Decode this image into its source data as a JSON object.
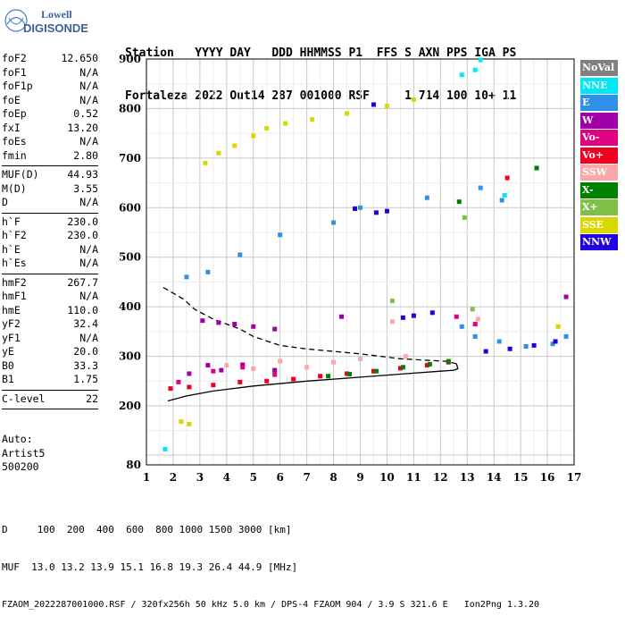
{
  "logo": {
    "line1": "Lowell",
    "line2": "DIGISONDE"
  },
  "header": {
    "labels": "Station   YYYY DAY   DDD HHMMSS P1  FFS S AXN PPS IGA PS",
    "values": "Fortaleza 2022 Out14 287 001000 RSF     1 714 100 10+ 11"
  },
  "params": [
    [
      [
        "foF2",
        "12.650"
      ],
      [
        "foF1",
        "N/A"
      ],
      [
        "foF1p",
        "N/A"
      ],
      [
        "foE",
        "N/A"
      ],
      [
        "foEp",
        "0.52"
      ],
      [
        "fxI",
        "13.20"
      ],
      [
        "foEs",
        "N/A"
      ],
      [
        "fmin",
        "2.80"
      ]
    ],
    [
      [
        "MUF(D)",
        "44.93"
      ],
      [
        "M(D)",
        "3.55"
      ],
      [
        "D",
        "N/A"
      ]
    ],
    [
      [
        "h`F",
        "230.0"
      ],
      [
        "h`F2",
        "230.0"
      ],
      [
        "h`E",
        "N/A"
      ],
      [
        "h`Es",
        "N/A"
      ]
    ],
    [
      [
        "hmF2",
        "267.7"
      ],
      [
        "hmF1",
        "N/A"
      ],
      [
        "hmE",
        "110.0"
      ],
      [
        "yF2",
        "32.4"
      ],
      [
        "yF1",
        "N/A"
      ],
      [
        "yE",
        "20.0"
      ],
      [
        "B0",
        "33.3"
      ],
      [
        "B1",
        "1.75"
      ]
    ],
    [
      [
        "C-level",
        "22"
      ]
    ]
  ],
  "auto": {
    "line1": "Auto:",
    "line2": "Artist5",
    "line3": "500200"
  },
  "footer": {
    "line1": "D     100  200  400  600  800 1000 1500 3000 [km]",
    "line2": "MUF  13.0 13.2 13.9 15.1 16.8 19.3 26.4 44.9 [MHz]",
    "line3": "FZAOM_2022287001000.RSF / 320fx256h 50 kHz 5.0 km / DPS-4 FZAOM 904 / 3.9 S 321.6 E   Ion2Png 1.3.20"
  },
  "legend": [
    {
      "label": "NoVal",
      "color": "#808080"
    },
    {
      "label": "NNE",
      "color": "#00e8f8"
    },
    {
      "label": "E",
      "color": "#3090e8"
    },
    {
      "label": "W",
      "color": "#a000a8"
    },
    {
      "label": "Vo-",
      "color": "#e00080"
    },
    {
      "label": "Vo+",
      "color": "#f00020"
    },
    {
      "label": "SSW",
      "color": "#f8a8a8"
    },
    {
      "label": "X-",
      "color": "#008000"
    },
    {
      "label": "X+",
      "color": "#80c048"
    },
    {
      "label": "SSE",
      "color": "#d8d800"
    },
    {
      "label": "NNW",
      "color": "#2000e0"
    }
  ],
  "chart_data": {
    "type": "scatter",
    "xlim": [
      1,
      17
    ],
    "ylim": [
      80,
      900
    ],
    "x_ticks": [
      1,
      2,
      3,
      4,
      5,
      6,
      7,
      8,
      9,
      10,
      11,
      12,
      13,
      14,
      15,
      16,
      17
    ],
    "y_ticks": [
      80,
      200,
      300,
      400,
      500,
      600,
      700,
      800,
      900
    ],
    "grid": true,
    "profile": {
      "x": [
        1.8,
        2.5,
        3.5,
        5,
        7,
        9,
        11,
        12,
        12.5,
        12.65,
        12.6,
        12.2,
        11.5,
        10.5,
        9,
        7,
        6,
        5,
        4.5,
        3.5,
        2.8,
        2.4
      ],
      "y": [
        210,
        220,
        230,
        240,
        250,
        258,
        266,
        270,
        272,
        275,
        285,
        290,
        292,
        295,
        305,
        315,
        322,
        340,
        355,
        375,
        395,
        415
      ]
    },
    "series": [
      {
        "name": "NoVal",
        "color": "#808080",
        "points": []
      },
      {
        "name": "NNE",
        "color": "#00e8f8",
        "points": [
          [
            1.7,
            112
          ],
          [
            12.8,
            868
          ],
          [
            13.3,
            878
          ],
          [
            13.5,
            898
          ],
          [
            14.4,
            625
          ]
        ]
      },
      {
        "name": "E",
        "color": "#3090e8",
        "points": [
          [
            2.5,
            460
          ],
          [
            3.3,
            470
          ],
          [
            4.5,
            505
          ],
          [
            6,
            545
          ],
          [
            8,
            570
          ],
          [
            9,
            600
          ],
          [
            11.5,
            620
          ],
          [
            13.5,
            640
          ],
          [
            14.3,
            615
          ],
          [
            12.8,
            360
          ],
          [
            13.3,
            340
          ],
          [
            14.2,
            330
          ],
          [
            15.2,
            320
          ],
          [
            16.2,
            325
          ],
          [
            16.7,
            340
          ]
        ]
      },
      {
        "name": "W",
        "color": "#a000a8",
        "points": [
          [
            3.1,
            372
          ],
          [
            3.7,
            368
          ],
          [
            4.3,
            365
          ],
          [
            5,
            360
          ],
          [
            5.8,
            355
          ],
          [
            8.3,
            380
          ],
          [
            2.6,
            265
          ],
          [
            3.3,
            282
          ],
          [
            3.8,
            272
          ],
          [
            4.6,
            283
          ],
          [
            5.8,
            272
          ],
          [
            16.7,
            420
          ]
        ]
      },
      {
        "name": "Vo-",
        "color": "#e00080",
        "points": [
          [
            2.2,
            248
          ],
          [
            3.5,
            270
          ],
          [
            4.6,
            278
          ],
          [
            5.8,
            263
          ],
          [
            13.3,
            365
          ],
          [
            12.6,
            380
          ]
        ]
      },
      {
        "name": "Vo+",
        "color": "#f00020",
        "points": [
          [
            1.9,
            235
          ],
          [
            2.6,
            238
          ],
          [
            3.5,
            242
          ],
          [
            4.5,
            248
          ],
          [
            5.5,
            250
          ],
          [
            6.5,
            254
          ],
          [
            7.5,
            260
          ],
          [
            8.5,
            265
          ],
          [
            9.5,
            270
          ],
          [
            10.5,
            276
          ],
          [
            11.5,
            282
          ],
          [
            12.3,
            288
          ],
          [
            14.5,
            660
          ]
        ]
      },
      {
        "name": "SSW",
        "color": "#f8a8a8",
        "points": [
          [
            4,
            282
          ],
          [
            5,
            275
          ],
          [
            6,
            290
          ],
          [
            7,
            278
          ],
          [
            8,
            288
          ],
          [
            9,
            295
          ],
          [
            10.7,
            300
          ],
          [
            10.2,
            370
          ],
          [
            13.4,
            375
          ]
        ]
      },
      {
        "name": "X-",
        "color": "#008000",
        "points": [
          [
            7.8,
            260
          ],
          [
            8.6,
            264
          ],
          [
            9.6,
            270
          ],
          [
            10.6,
            278
          ],
          [
            11.6,
            284
          ],
          [
            12.3,
            290
          ],
          [
            15.6,
            680
          ],
          [
            12.7,
            612
          ]
        ]
      },
      {
        "name": "X+",
        "color": "#80c048",
        "points": [
          [
            10.2,
            412
          ],
          [
            12.9,
            580
          ],
          [
            13.2,
            395
          ]
        ]
      },
      {
        "name": "SSE",
        "color": "#d8d800",
        "points": [
          [
            3.2,
            690
          ],
          [
            3.7,
            710
          ],
          [
            4.3,
            725
          ],
          [
            5,
            745
          ],
          [
            5.5,
            760
          ],
          [
            6.2,
            770
          ],
          [
            7.2,
            778
          ],
          [
            8.5,
            790
          ],
          [
            10,
            805
          ],
          [
            11,
            818
          ],
          [
            2.3,
            168
          ],
          [
            2.6,
            163
          ],
          [
            16.4,
            360
          ]
        ]
      },
      {
        "name": "NNW",
        "color": "#2000e0",
        "points": [
          [
            8.8,
            598
          ],
          [
            9.6,
            590
          ],
          [
            10,
            593
          ],
          [
            10.6,
            378
          ],
          [
            11,
            382
          ],
          [
            11.7,
            388
          ],
          [
            13.7,
            310
          ],
          [
            14.6,
            315
          ],
          [
            15.5,
            322
          ],
          [
            16.3,
            330
          ],
          [
            9.5,
            808
          ]
        ]
      }
    ]
  }
}
